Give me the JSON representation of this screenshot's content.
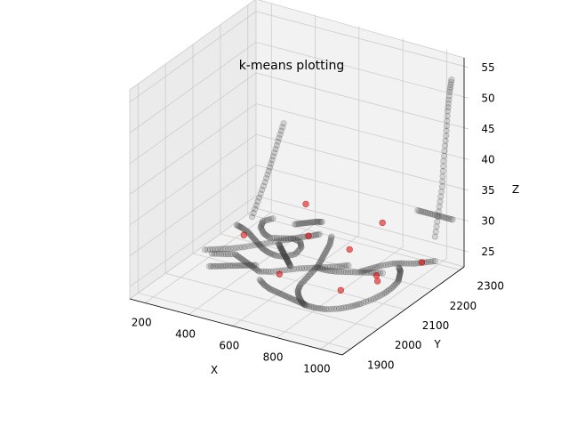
{
  "chart_data": {
    "type": "scatter3d",
    "title": "k-means plotting",
    "xlabel": "X",
    "ylabel": "Y",
    "zlabel": "Z",
    "x_ticks": [
      200,
      400,
      600,
      800,
      1000
    ],
    "y_ticks": [
      1900,
      2000,
      2100,
      2200,
      2300
    ],
    "z_ticks": [
      25,
      30,
      35,
      40,
      45,
      50,
      55
    ],
    "xlim": [
      130,
      1100
    ],
    "ylim": [
      1870,
      2330
    ],
    "zlim": [
      23,
      57
    ],
    "grid": true,
    "colors": {
      "points": "#404040",
      "centroids": "#e00000",
      "pane": "#f2f2f2",
      "pane_side": "#ebebeb",
      "grid": "#cccccc"
    },
    "point_paths": [
      [
        [
          230,
          2180,
          26
        ],
        [
          260,
          2175,
          26
        ],
        [
          300,
          2165,
          26
        ],
        [
          340,
          2150,
          26
        ],
        [
          380,
          2135,
          26
        ],
        [
          420,
          2120,
          26
        ],
        [
          460,
          2110,
          26
        ],
        [
          500,
          2105,
          26
        ],
        [
          540,
          2110,
          26
        ],
        [
          560,
          2130,
          26
        ],
        [
          550,
          2160,
          26
        ],
        [
          520,
          2180,
          26
        ],
        [
          480,
          2185,
          26
        ],
        [
          440,
          2175,
          26
        ],
        [
          400,
          2165,
          26
        ],
        [
          360,
          2175,
          26
        ],
        [
          320,
          2195,
          26
        ],
        [
          300,
          2220,
          26
        ],
        [
          320,
          2240,
          26
        ]
      ],
      [
        [
          210,
          2080,
          25
        ],
        [
          250,
          2095,
          25
        ],
        [
          290,
          2110,
          25
        ],
        [
          330,
          2130,
          25
        ],
        [
          370,
          2155,
          25
        ],
        [
          410,
          2180,
          25
        ],
        [
          440,
          2200,
          25
        ],
        [
          470,
          2220,
          25
        ],
        [
          500,
          2235,
          25
        ],
        [
          520,
          2250,
          25
        ]
      ],
      [
        [
          280,
          2050,
          26
        ],
        [
          320,
          2060,
          26
        ],
        [
          360,
          2070,
          26
        ],
        [
          400,
          2060,
          26
        ],
        [
          440,
          2050,
          26
        ],
        [
          480,
          2040,
          26
        ],
        [
          520,
          2030,
          26
        ],
        [
          560,
          2040,
          26
        ],
        [
          600,
          2060,
          26
        ],
        [
          640,
          2080,
          26
        ],
        [
          680,
          2095,
          26
        ],
        [
          720,
          2110,
          26
        ],
        [
          760,
          2125,
          26
        ],
        [
          790,
          2140,
          26
        ]
      ],
      [
        [
          600,
          2230,
          26
        ],
        [
          630,
          2200,
          26
        ],
        [
          650,
          2170,
          26
        ],
        [
          670,
          2140,
          26
        ],
        [
          690,
          2110,
          26
        ],
        [
          700,
          2080,
          26
        ],
        [
          710,
          2050,
          26
        ],
        [
          720,
          2020,
          26
        ],
        [
          740,
          1995,
          26
        ],
        [
          770,
          1975,
          26
        ],
        [
          800,
          1960,
          26
        ],
        [
          830,
          1950,
          26
        ]
      ],
      [
        [
          560,
          2000,
          26
        ],
        [
          600,
          1985,
          26
        ],
        [
          640,
          1975,
          26
        ],
        [
          680,
          1970,
          26
        ],
        [
          720,
          1965,
          26
        ],
        [
          760,
          1960,
          26
        ],
        [
          800,
          1955,
          26
        ],
        [
          840,
          1950,
          26
        ],
        [
          880,
          1950,
          26
        ],
        [
          920,
          1955,
          26
        ],
        [
          960,
          1970,
          26
        ],
        [
          990,
          1990,
          26
        ],
        [
          1010,
          2010,
          26
        ],
        [
          1030,
          2040,
          26
        ],
        [
          1040,
          2070,
          26
        ],
        [
          1040,
          2100,
          26
        ],
        [
          1030,
          2130,
          26
        ],
        [
          1010,
          2150,
          26
        ],
        [
          990,
          2170,
          26
        ],
        [
          970,
          2180,
          26
        ]
      ],
      [
        [
          860,
          2130,
          26
        ],
        [
          880,
          2150,
          26
        ],
        [
          900,
          2170,
          26
        ],
        [
          930,
          2190,
          26
        ],
        [
          960,
          2200,
          26
        ],
        [
          1000,
          2210,
          26
        ],
        [
          1030,
          2225,
          26
        ],
        [
          1060,
          2240,
          26
        ]
      ],
      [
        [
          700,
          2100,
          26
        ],
        [
          740,
          2100,
          26
        ],
        [
          780,
          2105,
          26
        ],
        [
          820,
          2115,
          26
        ],
        [
          860,
          2125,
          26
        ],
        [
          900,
          2135,
          26
        ],
        [
          940,
          2145,
          26
        ]
      ],
      [
        [
          420,
          2240,
          26
        ],
        [
          440,
          2250,
          26
        ],
        [
          460,
          2260,
          26
        ],
        [
          480,
          2270,
          26
        ],
        [
          500,
          2275,
          26
        ]
      ],
      [
        [
          880,
          2320,
          30
        ],
        [
          920,
          2320,
          30
        ],
        [
          960,
          2320,
          30
        ],
        [
          1000,
          2320,
          30
        ],
        [
          1040,
          2320,
          30
        ]
      ],
      [
        [
          1060,
          2240,
          30
        ],
        [
          1070,
          2245,
          34
        ],
        [
          1080,
          2250,
          38
        ],
        [
          1080,
          2255,
          42
        ],
        [
          1085,
          2260,
          46
        ],
        [
          1090,
          2262,
          50
        ],
        [
          1095,
          2265,
          53
        ],
        [
          1100,
          2268,
          55
        ]
      ],
      [
        [
          300,
          2180,
          28
        ],
        [
          320,
          2190,
          31
        ],
        [
          340,
          2200,
          34
        ],
        [
          360,
          2205,
          37
        ],
        [
          380,
          2210,
          40
        ],
        [
          400,
          2215,
          43
        ]
      ],
      [
        [
          460,
          2150,
          26
        ],
        [
          480,
          2140,
          26
        ],
        [
          500,
          2130,
          26
        ],
        [
          520,
          2120,
          26
        ],
        [
          540,
          2110,
          26
        ],
        [
          560,
          2100,
          26
        ],
        [
          580,
          2090,
          26
        ],
        [
          600,
          2080,
          26
        ]
      ],
      [
        [
          330,
          2000,
          26
        ],
        [
          360,
          2010,
          26
        ],
        [
          390,
          2020,
          26
        ],
        [
          420,
          2030,
          26
        ],
        [
          450,
          2040,
          26
        ],
        [
          480,
          2050,
          26
        ]
      ]
    ],
    "centroids": [
      [
        300,
        2150,
        26
      ],
      [
        420,
        2280,
        28
      ],
      [
        520,
        2210,
        26
      ],
      [
        720,
        2200,
        26
      ],
      [
        880,
        2040,
        26
      ],
      [
        960,
        2110,
        26
      ],
      [
        1050,
        2200,
        27
      ],
      [
        930,
        2130,
        26
      ],
      [
        600,
        2040,
        26
      ],
      [
        820,
        2240,
        30
      ]
    ]
  }
}
